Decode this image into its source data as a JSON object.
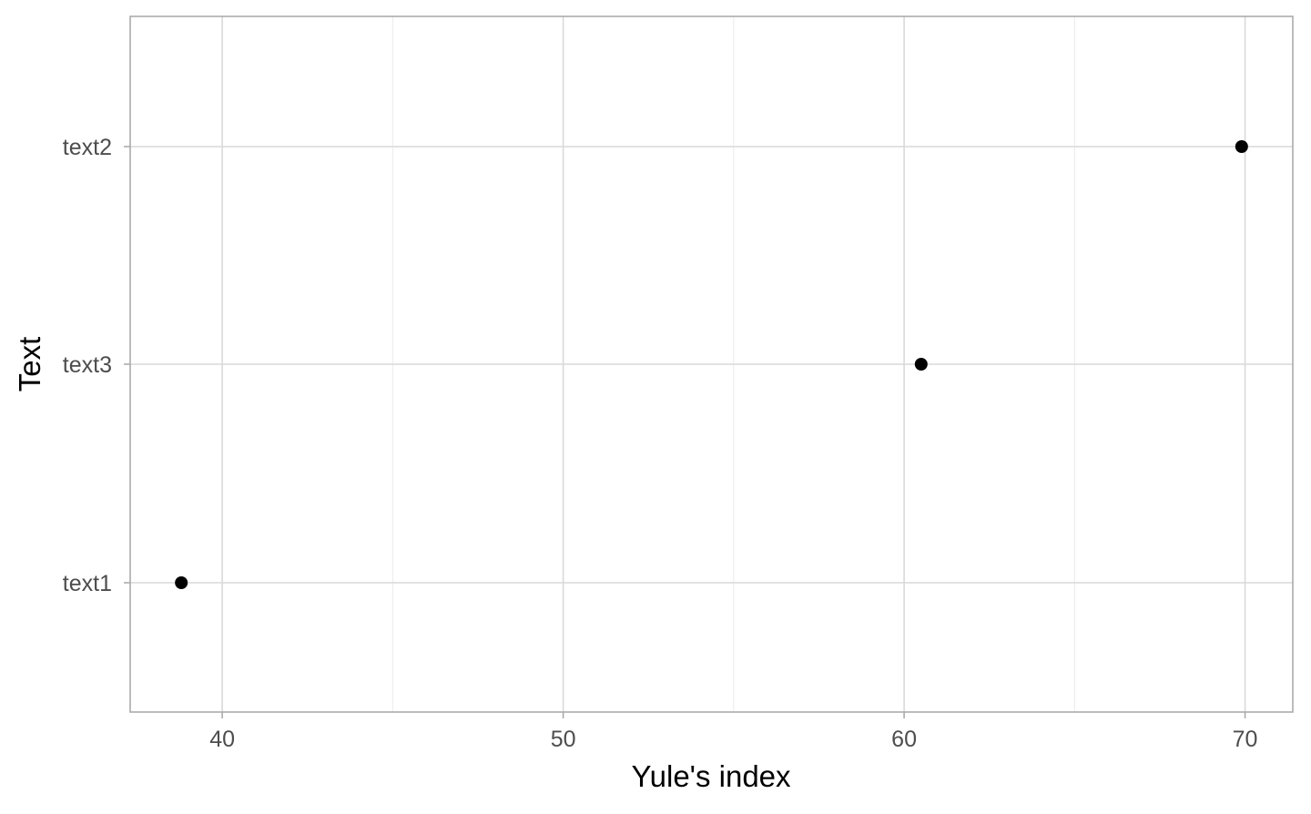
{
  "chart_data": {
    "type": "scatter",
    "title": "",
    "xlabel": "Yule's index",
    "ylabel": "Text",
    "xlim": [
      37.3,
      71.4
    ],
    "x_ticks": [
      40,
      50,
      60,
      70
    ],
    "x_minor_ticks": [
      45,
      55,
      65
    ],
    "y_categories": [
      "text1",
      "text3",
      "text2"
    ],
    "points": [
      {
        "label": "text1",
        "x": 38.8
      },
      {
        "label": "text3",
        "x": 60.5
      },
      {
        "label": "text2",
        "x": 69.9
      }
    ],
    "grid": true,
    "colors": {
      "point": "#000000",
      "grid_major": "#d9d9d9",
      "grid_minor": "#ececec",
      "panel_border": "#ababab",
      "tick_label": "#4d4d4d"
    }
  }
}
